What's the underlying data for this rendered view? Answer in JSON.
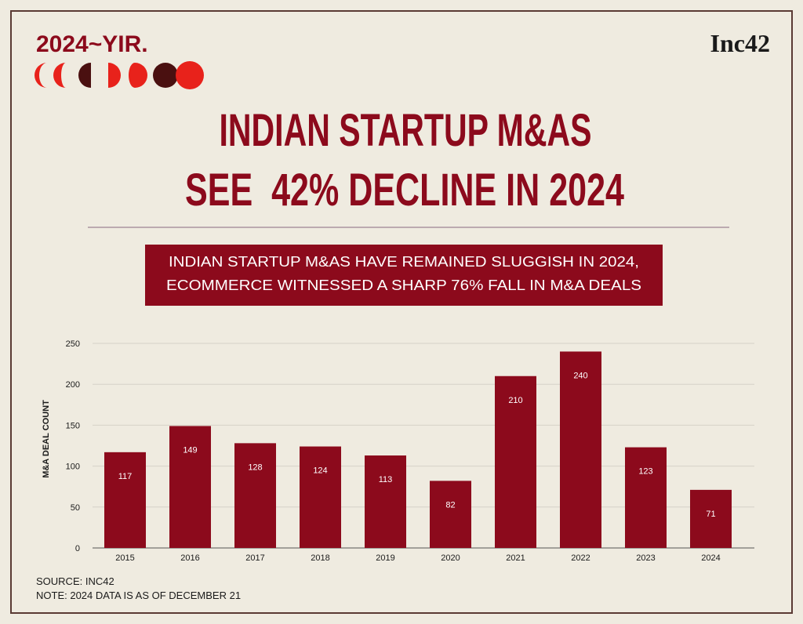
{
  "brand": {
    "yir": "2024~YIR.",
    "logo": "Inc42"
  },
  "chart_data": {
    "type": "bar",
    "title": [
      "INDIAN STARTUP M&AS",
      "SEE  42% DECLINE IN 2024"
    ],
    "subtitle": [
      "INDIAN STARTUP M&AS HAVE REMAINED SLUGGISH IN 2024,",
      "ECOMMERCE WITNESSED A SHARP 76% FALL IN M&A DEALS"
    ],
    "y_label": "M&A DEAL COUNT",
    "categories": [
      "2015",
      "2016",
      "2017",
      "2018",
      "2019",
      "2020",
      "2021",
      "2022",
      "2023",
      "2024"
    ],
    "values": [
      117,
      149,
      128,
      124,
      113,
      82,
      210,
      240,
      123,
      71
    ],
    "color": "#8c0a1c",
    "ylim": [
      0,
      250
    ],
    "yticks": [
      0,
      50,
      100,
      150,
      200,
      250
    ],
    "grid": true,
    "notes": [
      "SOURCE: INC42",
      "NOTE: 2024 DATA IS AS OF DECEMBER 21"
    ]
  }
}
